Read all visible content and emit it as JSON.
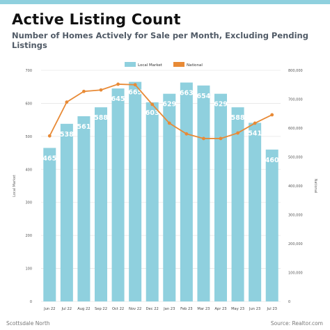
{
  "header": {
    "title": "Active Listing Count",
    "subtitle": "Number of Homes Actively for Sale per Month, Excluding Pending Listings"
  },
  "footer": {
    "left": "Scottsdale North",
    "right": "Source: Realtor.com"
  },
  "colors": {
    "bar": "#8fd0de",
    "line": "#e88a36",
    "accent_bar": "#8fd0de",
    "grid": "#e6e6e6"
  },
  "chart_data": {
    "type": "bar",
    "categories": [
      "Jun 22",
      "Jul 22",
      "Aug 22",
      "Sep 22",
      "Oct 22",
      "Nov 22",
      "Dec 22",
      "Jan 23",
      "Feb 23",
      "Mar 23",
      "Apr 23",
      "May 23",
      "Jun 23",
      "Jul 23"
    ],
    "series": [
      {
        "name": "Local Market",
        "type": "bar",
        "axis": "left",
        "values": [
          465,
          538,
          561,
          588,
          645,
          665,
          603,
          629,
          663,
          654,
          629,
          588,
          541,
          460
        ]
      },
      {
        "name": "National",
        "type": "line",
        "axis": "right",
        "values": [
          573000,
          690000,
          727000,
          732000,
          752000,
          750000,
          682000,
          617000,
          580000,
          564000,
          564000,
          583000,
          617000,
          646000
        ]
      }
    ],
    "xlabel": "",
    "ylabel": "Local Market",
    "y2label": "National",
    "ylim": [
      0,
      700
    ],
    "y2lim": [
      0,
      800000
    ],
    "yticks": [
      "0",
      "100",
      "200",
      "300",
      "400",
      "500",
      "600",
      "700"
    ],
    "y2ticks": [
      "0",
      "100,000",
      "200,000",
      "300,000",
      "400,000",
      "500,000",
      "600,000",
      "700,000",
      "800,000"
    ],
    "grid": true,
    "legend": "top-center",
    "data_labels": true
  }
}
